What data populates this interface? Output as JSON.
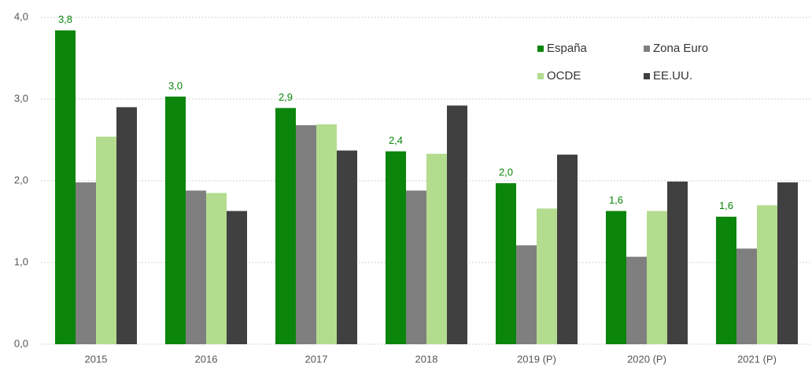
{
  "chart_data": {
    "type": "bar",
    "categories": [
      "2015",
      "2016",
      "2017",
      "2018",
      "2019 (P)",
      "2020 (P)",
      "2021 (P)"
    ],
    "series": [
      {
        "name": "España",
        "color": "#0b850b",
        "values": [
          3.84,
          3.03,
          2.89,
          2.36,
          1.97,
          1.63,
          1.56
        ],
        "value_labels": [
          "3,8",
          "3,0",
          "2,9",
          "2,4",
          "2,0",
          "1,6",
          "1,6"
        ]
      },
      {
        "name": "Zona Euro",
        "color": "#7f7f7f",
        "values": [
          1.98,
          1.88,
          2.68,
          1.88,
          1.21,
          1.07,
          1.17
        ]
      },
      {
        "name": "OCDE",
        "color": "#b3dc8f",
        "values": [
          2.54,
          1.85,
          2.69,
          2.33,
          1.66,
          1.63,
          1.7
        ]
      },
      {
        "name": "EE.UU.",
        "color": "#404040",
        "values": [
          2.9,
          1.63,
          2.37,
          2.92,
          2.32,
          1.99,
          1.98
        ]
      }
    ],
    "ylim": [
      0,
      4
    ],
    "yticks": [
      {
        "value": 0,
        "label": "0,0"
      },
      {
        "value": 1,
        "label": "1,0"
      },
      {
        "value": 2,
        "label": "2,0"
      },
      {
        "value": 3,
        "label": "3,0"
      },
      {
        "value": 4,
        "label": "4,0"
      }
    ],
    "grid": true,
    "legend": "upper right"
  }
}
